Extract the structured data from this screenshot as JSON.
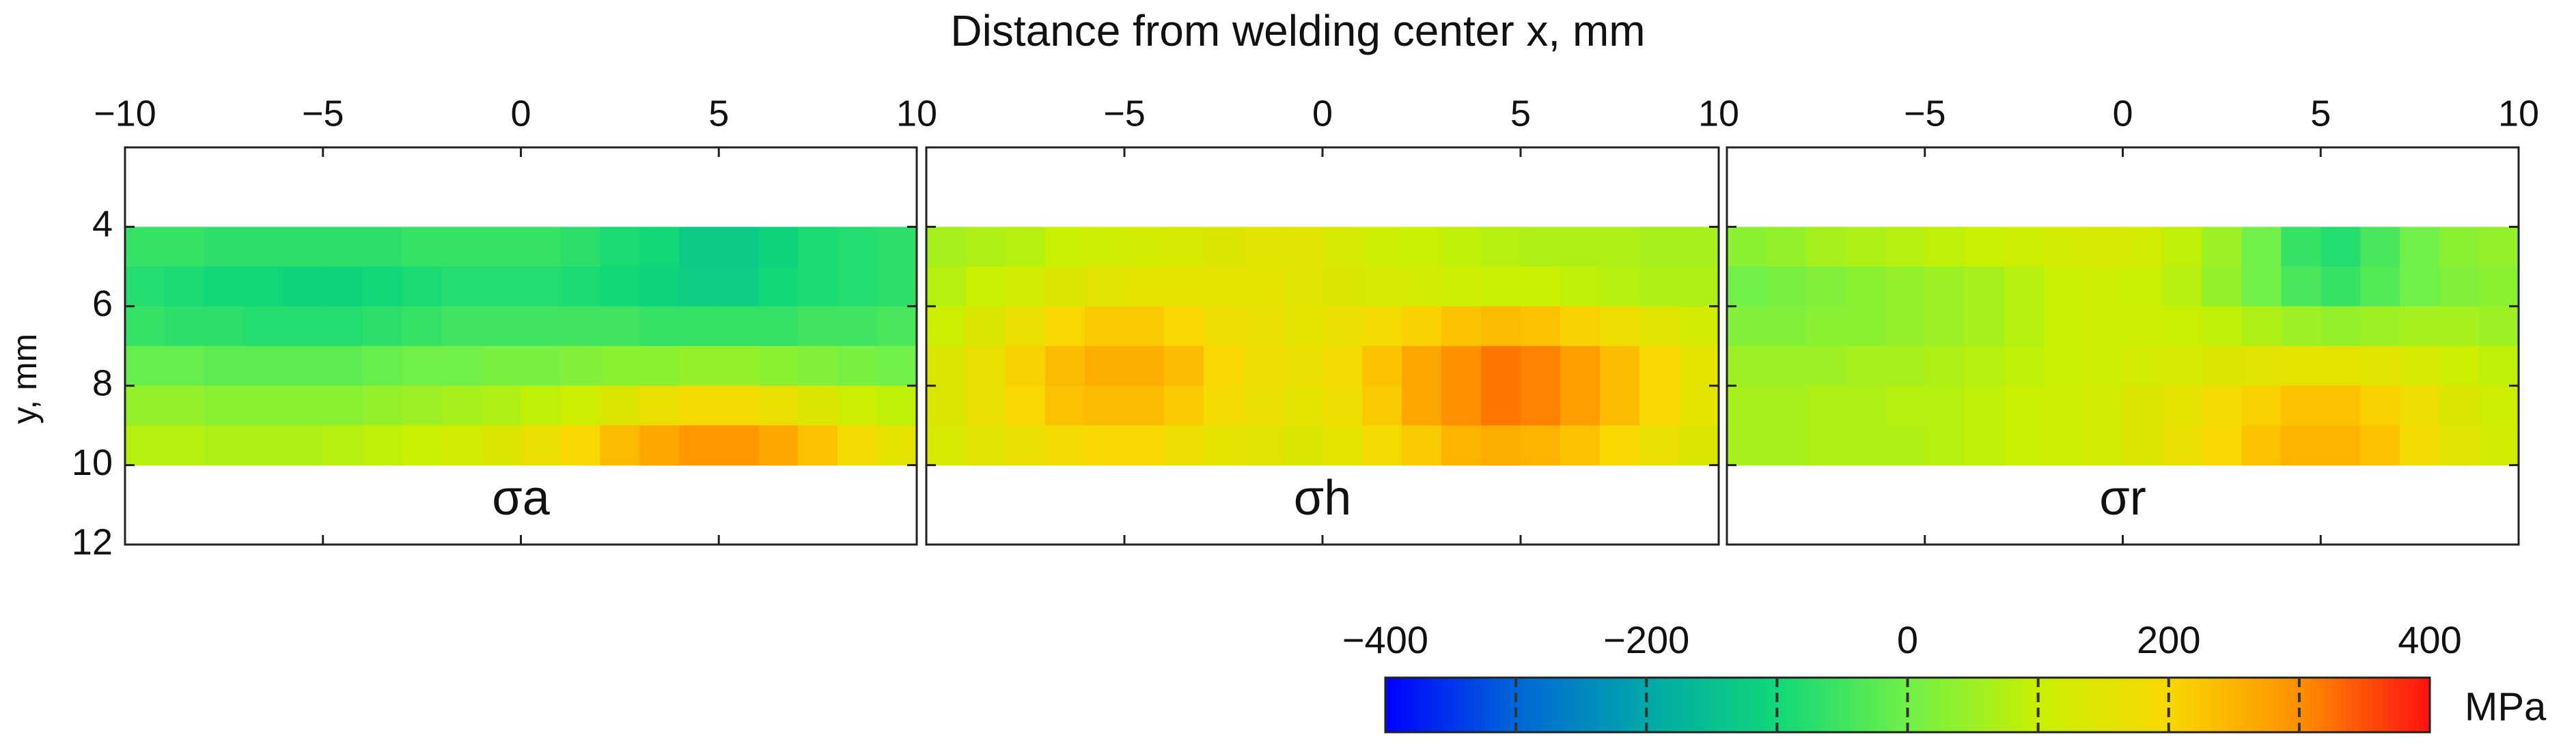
{
  "chart_data": {
    "type": "heatmap",
    "title": "Distance from welding center x, mm",
    "y_label": "y, mm",
    "xlim": [
      -10,
      10
    ],
    "xticks": [
      {
        "value": -10,
        "label": "−10"
      },
      {
        "value": -5,
        "label": "−5"
      },
      0,
      5,
      10
    ],
    "ylim": [
      2,
      12
    ],
    "yticks": [
      4,
      6,
      8,
      10,
      12
    ],
    "x_edges": [
      -10,
      -9,
      -8,
      -7,
      -6,
      -5,
      -4,
      -3,
      -2,
      -1,
      0,
      1,
      2,
      3,
      4,
      5,
      6,
      7,
      8,
      9,
      10
    ],
    "y_edges": [
      4,
      5,
      6,
      7,
      8,
      9,
      10
    ],
    "panels": [
      {
        "label": "σa",
        "values": [
          [
            -60,
            -60,
            -70,
            -70,
            -70,
            -70,
            -70,
            -60,
            -60,
            -60,
            -60,
            -70,
            -90,
            -100,
            -130,
            -130,
            -110,
            -90,
            -80,
            -70
          ],
          [
            -80,
            -90,
            -100,
            -100,
            -110,
            -110,
            -100,
            -90,
            -80,
            -80,
            -80,
            -90,
            -100,
            -110,
            -120,
            -120,
            -100,
            -90,
            -80,
            -70
          ],
          [
            -60,
            -70,
            -70,
            -80,
            -80,
            -80,
            -70,
            -60,
            -50,
            -50,
            -50,
            -50,
            -50,
            -60,
            -60,
            -60,
            -60,
            -50,
            -50,
            -40
          ],
          [
            -10,
            -10,
            -20,
            -20,
            -20,
            -20,
            -10,
            0,
            0,
            10,
            10,
            20,
            30,
            30,
            40,
            40,
            30,
            20,
            10,
            0
          ],
          [
            40,
            40,
            30,
            30,
            30,
            30,
            40,
            50,
            60,
            70,
            90,
            110,
            140,
            170,
            190,
            190,
            170,
            140,
            110,
            90
          ],
          [
            80,
            80,
            70,
            70,
            70,
            80,
            90,
            100,
            120,
            140,
            170,
            200,
            240,
            270,
            290,
            290,
            270,
            230,
            190,
            160
          ]
        ]
      },
      {
        "label": "σh",
        "values": [
          [
            60,
            70,
            80,
            100,
            110,
            120,
            130,
            140,
            150,
            150,
            130,
            110,
            100,
            90,
            80,
            70,
            70,
            70,
            60,
            60
          ],
          [
            80,
            100,
            120,
            140,
            150,
            160,
            160,
            160,
            160,
            150,
            140,
            130,
            120,
            110,
            100,
            100,
            90,
            80,
            70,
            70
          ],
          [
            110,
            140,
            170,
            200,
            220,
            220,
            200,
            180,
            170,
            160,
            170,
            190,
            210,
            230,
            240,
            230,
            210,
            180,
            150,
            120
          ],
          [
            140,
            170,
            210,
            240,
            260,
            260,
            240,
            200,
            180,
            170,
            190,
            230,
            270,
            300,
            320,
            310,
            280,
            240,
            200,
            160
          ],
          [
            140,
            170,
            200,
            230,
            240,
            240,
            220,
            190,
            170,
            160,
            180,
            220,
            270,
            300,
            320,
            310,
            280,
            240,
            200,
            160
          ],
          [
            130,
            150,
            170,
            190,
            200,
            200,
            180,
            160,
            150,
            140,
            160,
            190,
            220,
            250,
            260,
            250,
            230,
            200,
            170,
            140
          ]
        ]
      },
      {
        "label": "σr",
        "values": [
          [
            30,
            40,
            60,
            70,
            80,
            90,
            100,
            110,
            120,
            130,
            120,
            90,
            50,
            0,
            -60,
            -80,
            -40,
            0,
            30,
            40
          ],
          [
            0,
            10,
            20,
            30,
            40,
            50,
            60,
            80,
            100,
            110,
            100,
            80,
            40,
            0,
            -40,
            -60,
            -30,
            0,
            20,
            30
          ],
          [
            20,
            20,
            30,
            30,
            40,
            50,
            60,
            80,
            100,
            110,
            110,
            100,
            90,
            70,
            50,
            40,
            50,
            60,
            60,
            50
          ],
          [
            50,
            50,
            50,
            60,
            60,
            70,
            80,
            90,
            100,
            110,
            120,
            130,
            140,
            150,
            160,
            160,
            150,
            130,
            110,
            90
          ],
          [
            60,
            60,
            70,
            70,
            80,
            80,
            90,
            100,
            110,
            120,
            140,
            160,
            190,
            210,
            230,
            230,
            210,
            180,
            140,
            110
          ],
          [
            60,
            60,
            70,
            70,
            70,
            80,
            90,
            100,
            110,
            120,
            140,
            170,
            200,
            230,
            250,
            250,
            230,
            190,
            150,
            120
          ]
        ]
      }
    ],
    "colorbar": {
      "label": "MPa",
      "lim": [
        -400,
        400
      ],
      "ticks": [
        {
          "value": -400,
          "label": "−400"
        },
        {
          "value": -200,
          "label": "−200"
        },
        0,
        200,
        400
      ],
      "minor_ticks": [
        -300,
        -200,
        -100,
        0,
        100,
        200,
        300
      ],
      "colors": [
        "#0000ff",
        "#0066d8",
        "#00a8a8",
        "#10d878",
        "#70f048",
        "#c8f000",
        "#f8d800",
        "#ff9000",
        "#ff1010"
      ]
    }
  }
}
